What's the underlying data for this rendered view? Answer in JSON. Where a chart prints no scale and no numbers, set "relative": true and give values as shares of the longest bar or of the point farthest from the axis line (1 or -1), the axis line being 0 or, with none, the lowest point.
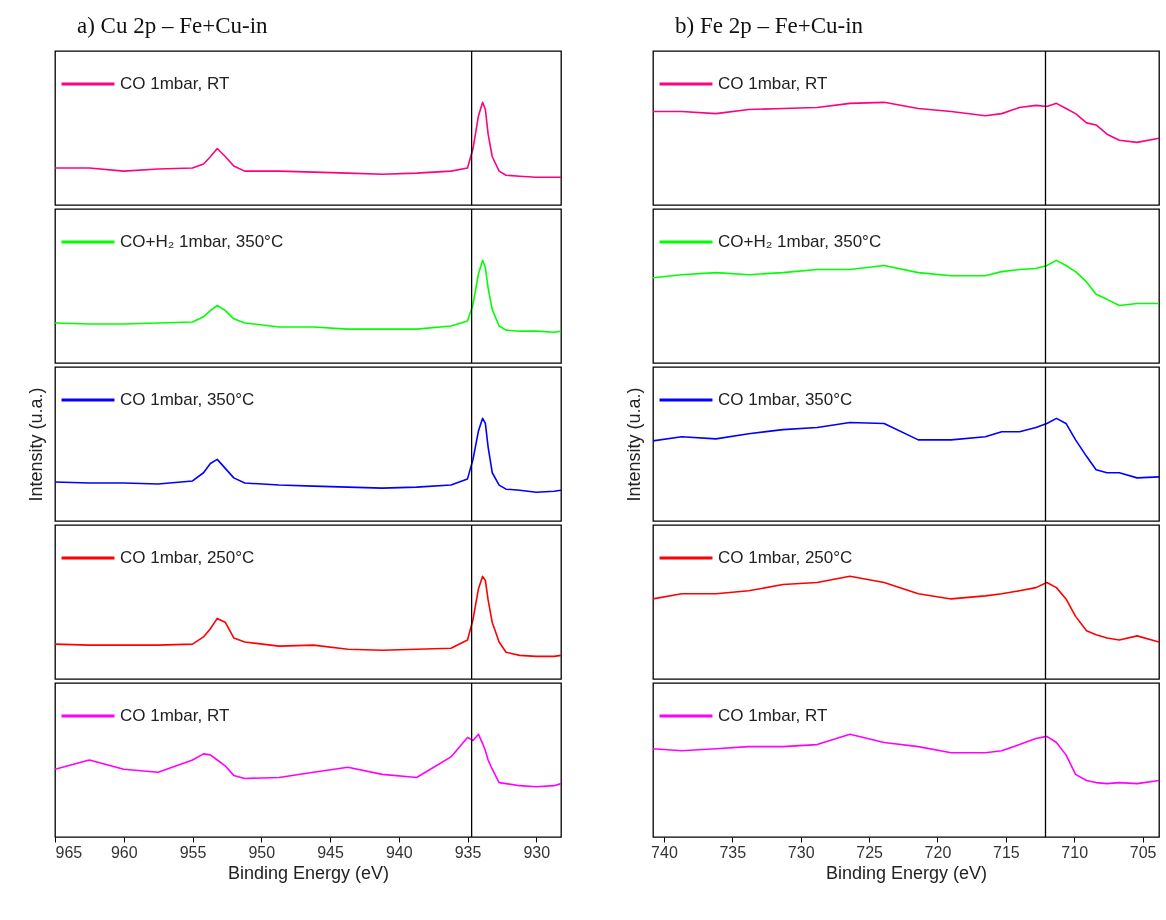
{
  "chart_data": [
    {
      "type": "line",
      "title": "a) Cu 2p – Fe+Cu-in",
      "relative": true,
      "legend": "top left",
      "tick_labels": false,
      "xlim": [
        965,
        928.2
      ],
      "xticks": [
        965,
        960,
        955,
        950,
        945,
        940,
        935,
        930
      ],
      "ref_lines": [
        {
          "axis": "x",
          "value": 934.7
        }
      ],
      "x": [
        965.0,
        962.5,
        960.0,
        957.5,
        955.0,
        954.2,
        953.7,
        953.2,
        952.6,
        952.0,
        951.2,
        948.7,
        946.2,
        943.7,
        941.2,
        938.7,
        936.2,
        935.0,
        934.6,
        934.2,
        933.9,
        933.7,
        933.5,
        933.2,
        932.7,
        932.2,
        931.2,
        930.0,
        928.7,
        928.2
      ],
      "series": [
        {
          "name": "CO 1mbar, RT",
          "color": "#ff0080",
          "values": [
            0.36,
            0.36,
            0.33,
            0.35,
            0.36,
            0.4,
            0.47,
            0.55,
            0.47,
            0.38,
            0.33,
            0.33,
            0.32,
            0.31,
            0.3,
            0.31,
            0.33,
            0.36,
            0.55,
            0.87,
            1,
            0.93,
            0.69,
            0.47,
            0.33,
            0.29,
            0.28,
            0.27,
            0.27,
            0.27
          ]
        }
      ]
    },
    {
      "type": "line",
      "relative": true,
      "legend": "top left",
      "tick_labels": false,
      "xlim": [
        965,
        928.2
      ],
      "xticks": [
        965,
        960,
        955,
        950,
        945,
        940,
        935,
        930
      ],
      "ref_lines": [
        {
          "axis": "x",
          "value": 934.7
        }
      ],
      "x": [
        965.0,
        962.5,
        960.0,
        957.5,
        955.0,
        954.2,
        953.7,
        953.2,
        952.6,
        952.0,
        951.2,
        948.7,
        946.2,
        943.7,
        941.2,
        938.7,
        936.2,
        935.0,
        934.6,
        934.2,
        933.9,
        933.7,
        933.5,
        933.2,
        932.7,
        932.2,
        931.2,
        930.0,
        928.7,
        928.2
      ],
      "series": [
        {
          "name": "CO+H₂ 1mbar, 350°C",
          "color": "#00ff00",
          "values": [
            0.39,
            0.38,
            0.38,
            0.39,
            0.4,
            0.45,
            0.51,
            0.56,
            0.51,
            0.43,
            0.39,
            0.35,
            0.35,
            0.33,
            0.33,
            0.33,
            0.36,
            0.41,
            0.57,
            0.87,
            1,
            0.93,
            0.73,
            0.52,
            0.36,
            0.32,
            0.31,
            0.31,
            0.3,
            0.31
          ]
        }
      ]
    },
    {
      "type": "line",
      "relative": true,
      "ylabel": "Intensity (u.a.)",
      "legend": "top left",
      "tick_labels": false,
      "xlim": [
        965,
        928.2
      ],
      "xticks": [
        965,
        960,
        955,
        950,
        945,
        940,
        935,
        930
      ],
      "ref_lines": [
        {
          "axis": "x",
          "value": 934.7
        }
      ],
      "x": [
        965.0,
        962.5,
        960.0,
        957.5,
        955.0,
        954.2,
        953.7,
        953.2,
        952.6,
        952.0,
        951.2,
        948.7,
        946.2,
        943.7,
        941.2,
        938.7,
        936.2,
        935.0,
        934.6,
        934.2,
        933.9,
        933.7,
        933.5,
        933.2,
        932.7,
        932.2,
        931.2,
        930.0,
        928.7,
        928.2
      ],
      "series": [
        {
          "name": "CO 1mbar, 350°C",
          "color": "#0000ff",
          "values": [
            0.38,
            0.37,
            0.37,
            0.36,
            0.39,
            0.47,
            0.56,
            0.6,
            0.51,
            0.42,
            0.37,
            0.35,
            0.34,
            0.33,
            0.32,
            0.33,
            0.35,
            0.41,
            0.6,
            0.88,
            1,
            0.95,
            0.72,
            0.47,
            0.35,
            0.31,
            0.3,
            0.28,
            0.29,
            0.3
          ]
        }
      ]
    },
    {
      "type": "line",
      "relative": true,
      "legend": "top left",
      "tick_labels": false,
      "xlim": [
        965,
        928.2
      ],
      "xticks": [
        965,
        960,
        955,
        950,
        945,
        940,
        935,
        930
      ],
      "ref_lines": [
        {
          "axis": "x",
          "value": 934.7
        }
      ],
      "x": [
        965.0,
        962.5,
        960.0,
        957.5,
        955.0,
        954.2,
        953.7,
        953.2,
        952.6,
        952.0,
        951.2,
        948.7,
        946.2,
        943.7,
        941.2,
        938.7,
        936.2,
        935.0,
        934.6,
        934.2,
        933.9,
        933.7,
        933.5,
        933.2,
        932.7,
        932.2,
        931.2,
        930.0,
        928.7,
        928.2
      ],
      "series": [
        {
          "name": "CO 1mbar, 250°C",
          "color": "#ff0000",
          "values": [
            0.34,
            0.33,
            0.33,
            0.33,
            0.34,
            0.41,
            0.49,
            0.59,
            0.55,
            0.4,
            0.36,
            0.32,
            0.33,
            0.29,
            0.28,
            0.29,
            0.3,
            0.38,
            0.58,
            0.88,
            1,
            0.96,
            0.77,
            0.55,
            0.36,
            0.26,
            0.23,
            0.22,
            0.22,
            0.23
          ]
        }
      ]
    },
    {
      "type": "line",
      "relative": true,
      "xlabel": "Binding Energy (eV)",
      "legend": "top left",
      "tick_labels": "x",
      "xlim": [
        965,
        928.2
      ],
      "xticks": [
        965,
        960,
        955,
        950,
        945,
        940,
        935,
        930
      ],
      "ref_lines": [
        {
          "axis": "x",
          "value": 934.7
        }
      ],
      "x": [
        965.0,
        962.5,
        960.0,
        957.5,
        955.0,
        954.2,
        953.7,
        953.2,
        952.6,
        952.0,
        951.2,
        948.7,
        946.2,
        943.7,
        941.2,
        938.7,
        936.2,
        935.0,
        934.6,
        934.2,
        933.9,
        933.7,
        933.5,
        933.2,
        932.7,
        932.2,
        931.2,
        930.0,
        928.7,
        928.2
      ],
      "series": [
        {
          "name": "CO 1mbar, RT",
          "color": "#ff00ff",
          "values": [
            0.66,
            0.75,
            0.66,
            0.63,
            0.75,
            0.81,
            0.8,
            0.75,
            0.69,
            0.6,
            0.57,
            0.58,
            0.63,
            0.68,
            0.61,
            0.58,
            0.78,
            0.97,
            0.94,
            1,
            0.91,
            0.84,
            0.75,
            0.66,
            0.53,
            0.52,
            0.5,
            0.49,
            0.5,
            0.52
          ]
        }
      ]
    },
    {
      "type": "line",
      "title": "b) Fe 2p – Fe+Cu-in",
      "relative": true,
      "legend": "top left",
      "tick_labels": false,
      "xlim": [
        740.8,
        703.8
      ],
      "xticks": [
        740,
        735,
        730,
        725,
        720,
        715,
        710,
        705
      ],
      "ref_lines": [
        {
          "axis": "x",
          "value": 712.1
        }
      ],
      "x": [
        740.8,
        738.7,
        736.2,
        733.8,
        731.3,
        728.8,
        726.4,
        723.9,
        721.4,
        719.0,
        716.5,
        715.3,
        714.0,
        712.8,
        712.0,
        711.3,
        710.6,
        709.9,
        709.1,
        708.4,
        707.6,
        706.7,
        705.4,
        703.8
      ],
      "series": [
        {
          "name": "CO 1mbar, RT",
          "color": "#ff0080",
          "values": [
            0.91,
            0.91,
            0.89,
            0.93,
            0.94,
            0.95,
            0.99,
            1,
            0.94,
            0.91,
            0.87,
            0.89,
            0.95,
            0.97,
            0.96,
            0.99,
            0.94,
            0.89,
            0.8,
            0.78,
            0.69,
            0.63,
            0.61,
            0.65
          ]
        }
      ]
    },
    {
      "type": "line",
      "relative": true,
      "legend": "top left",
      "tick_labels": false,
      "xlim": [
        740.8,
        703.8
      ],
      "xticks": [
        740,
        735,
        730,
        725,
        720,
        715,
        710,
        705
      ],
      "ref_lines": [
        {
          "axis": "x",
          "value": 712.1
        }
      ],
      "x": [
        740.8,
        738.7,
        736.2,
        733.8,
        731.3,
        728.8,
        726.4,
        723.9,
        721.4,
        719.0,
        716.5,
        715.3,
        714.0,
        712.8,
        712.0,
        711.3,
        710.6,
        709.9,
        709.1,
        708.4,
        707.6,
        706.7,
        705.4,
        703.8
      ],
      "series": [
        {
          "name": "CO+H₂ 1mbar, 350°C",
          "color": "#00ff00",
          "values": [
            0.83,
            0.86,
            0.88,
            0.86,
            0.88,
            0.91,
            0.91,
            0.95,
            0.88,
            0.85,
            0.85,
            0.89,
            0.91,
            0.92,
            0.95,
            1,
            0.95,
            0.89,
            0.79,
            0.67,
            0.62,
            0.56,
            0.58,
            0.58
          ]
        }
      ]
    },
    {
      "type": "line",
      "relative": true,
      "ylabel": "Intensity (u.a.)",
      "legend": "top left",
      "tick_labels": false,
      "xlim": [
        740.8,
        703.8
      ],
      "xticks": [
        740,
        735,
        730,
        725,
        720,
        715,
        710,
        705
      ],
      "ref_lines": [
        {
          "axis": "x",
          "value": 712.1
        }
      ],
      "x": [
        740.8,
        738.7,
        736.2,
        733.8,
        731.3,
        728.8,
        726.4,
        723.9,
        721.4,
        719.0,
        716.5,
        715.3,
        714.0,
        712.8,
        712.0,
        711.3,
        710.6,
        709.9,
        709.1,
        708.4,
        707.6,
        706.7,
        705.4,
        703.8
      ],
      "series": [
        {
          "name": "CO 1mbar, 350°C",
          "color": "#0000ff",
          "values": [
            0.78,
            0.82,
            0.8,
            0.85,
            0.89,
            0.91,
            0.96,
            0.95,
            0.79,
            0.79,
            0.82,
            0.87,
            0.87,
            0.91,
            0.95,
            1,
            0.95,
            0.79,
            0.63,
            0.5,
            0.47,
            0.47,
            0.42,
            0.43
          ]
        }
      ]
    },
    {
      "type": "line",
      "relative": true,
      "legend": "top left",
      "tick_labels": false,
      "xlim": [
        740.8,
        703.8
      ],
      "xticks": [
        740,
        735,
        730,
        725,
        720,
        715,
        710,
        705
      ],
      "ref_lines": [
        {
          "axis": "x",
          "value": 712.1
        }
      ],
      "x": [
        740.8,
        738.7,
        736.2,
        733.8,
        731.3,
        728.8,
        726.4,
        723.9,
        721.4,
        719.0,
        716.5,
        715.3,
        714.0,
        712.8,
        712.0,
        711.3,
        710.6,
        709.9,
        709.1,
        708.4,
        707.6,
        706.7,
        705.4,
        703.8
      ],
      "series": [
        {
          "name": "CO 1mbar, 250°C",
          "color": "#ff0000",
          "values": [
            0.78,
            0.83,
            0.83,
            0.86,
            0.92,
            0.94,
            1,
            0.94,
            0.83,
            0.78,
            0.81,
            0.83,
            0.86,
            0.89,
            0.94,
            0.89,
            0.78,
            0.61,
            0.47,
            0.43,
            0.4,
            0.38,
            0.42,
            0.36
          ]
        }
      ]
    },
    {
      "type": "line",
      "relative": true,
      "xlabel": "Binding Energy (eV)",
      "legend": "top left",
      "tick_labels": "x",
      "xlim": [
        740.8,
        703.8
      ],
      "xticks": [
        740,
        735,
        730,
        725,
        720,
        715,
        710,
        705
      ],
      "ref_lines": [
        {
          "axis": "x",
          "value": 712.1
        }
      ],
      "x": [
        740.8,
        738.7,
        736.2,
        733.8,
        731.3,
        728.8,
        726.4,
        723.9,
        721.4,
        719.0,
        716.5,
        715.3,
        714.0,
        712.8,
        712.0,
        711.3,
        710.6,
        709.9,
        709.1,
        708.4,
        707.6,
        706.7,
        705.4,
        703.8
      ],
      "series": [
        {
          "name": "CO 1mbar, RT",
          "color": "#ff00ff",
          "values": [
            0.86,
            0.84,
            0.86,
            0.88,
            0.88,
            0.9,
            1,
            0.92,
            0.88,
            0.82,
            0.82,
            0.84,
            0.9,
            0.96,
            0.98,
            0.92,
            0.8,
            0.61,
            0.55,
            0.53,
            0.52,
            0.53,
            0.52,
            0.55
          ]
        }
      ]
    }
  ]
}
